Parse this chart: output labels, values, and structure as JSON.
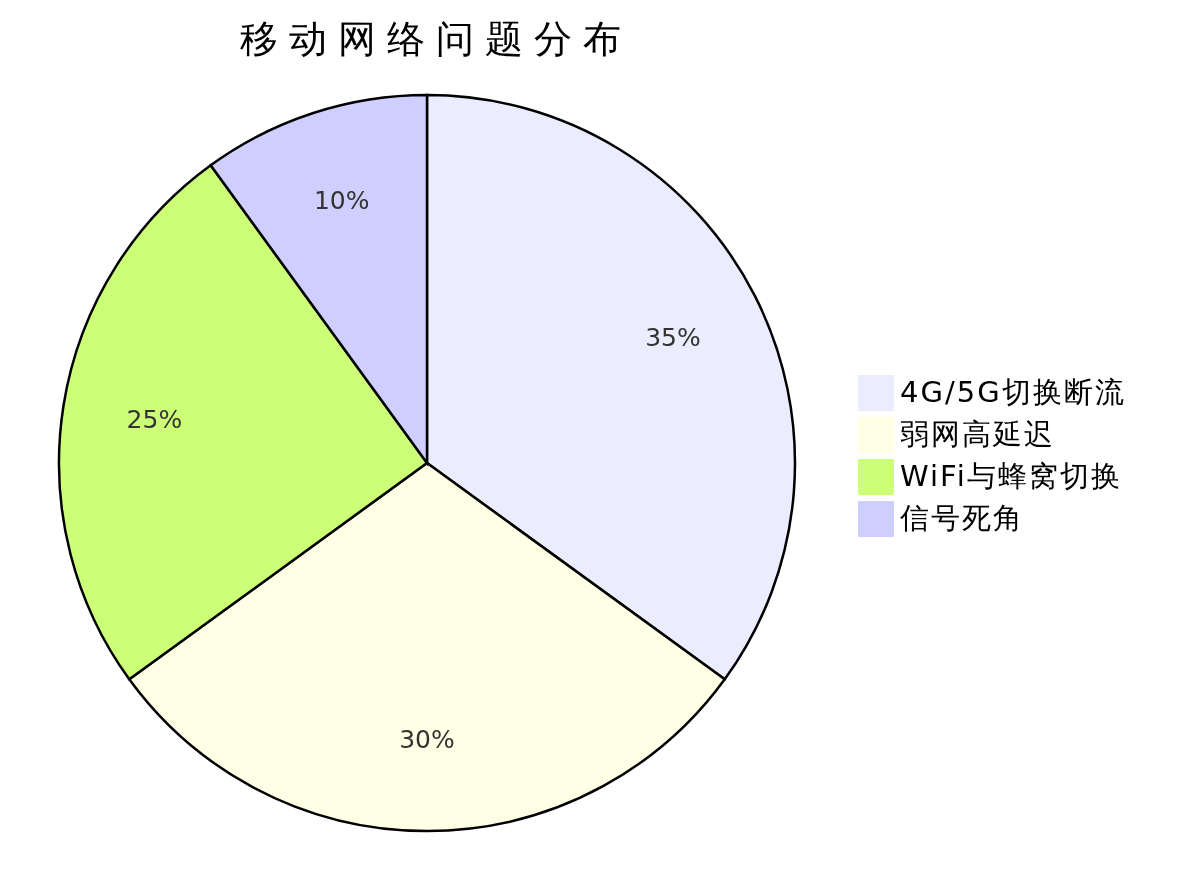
{
  "chart_data": {
    "type": "pie",
    "title": "移动网络问题分布",
    "categories": [
      "4G/5G切换断流",
      "弱网高延迟",
      "WiFi与蜂窝切换",
      "信号死角"
    ],
    "values": [
      35,
      30,
      25,
      10
    ],
    "value_labels": [
      "35%",
      "30%",
      "25%",
      "10%"
    ],
    "colors": [
      "#ececff",
      "#ffffe6",
      "#ccff77",
      "#cfcfff"
    ],
    "legend": "right"
  }
}
